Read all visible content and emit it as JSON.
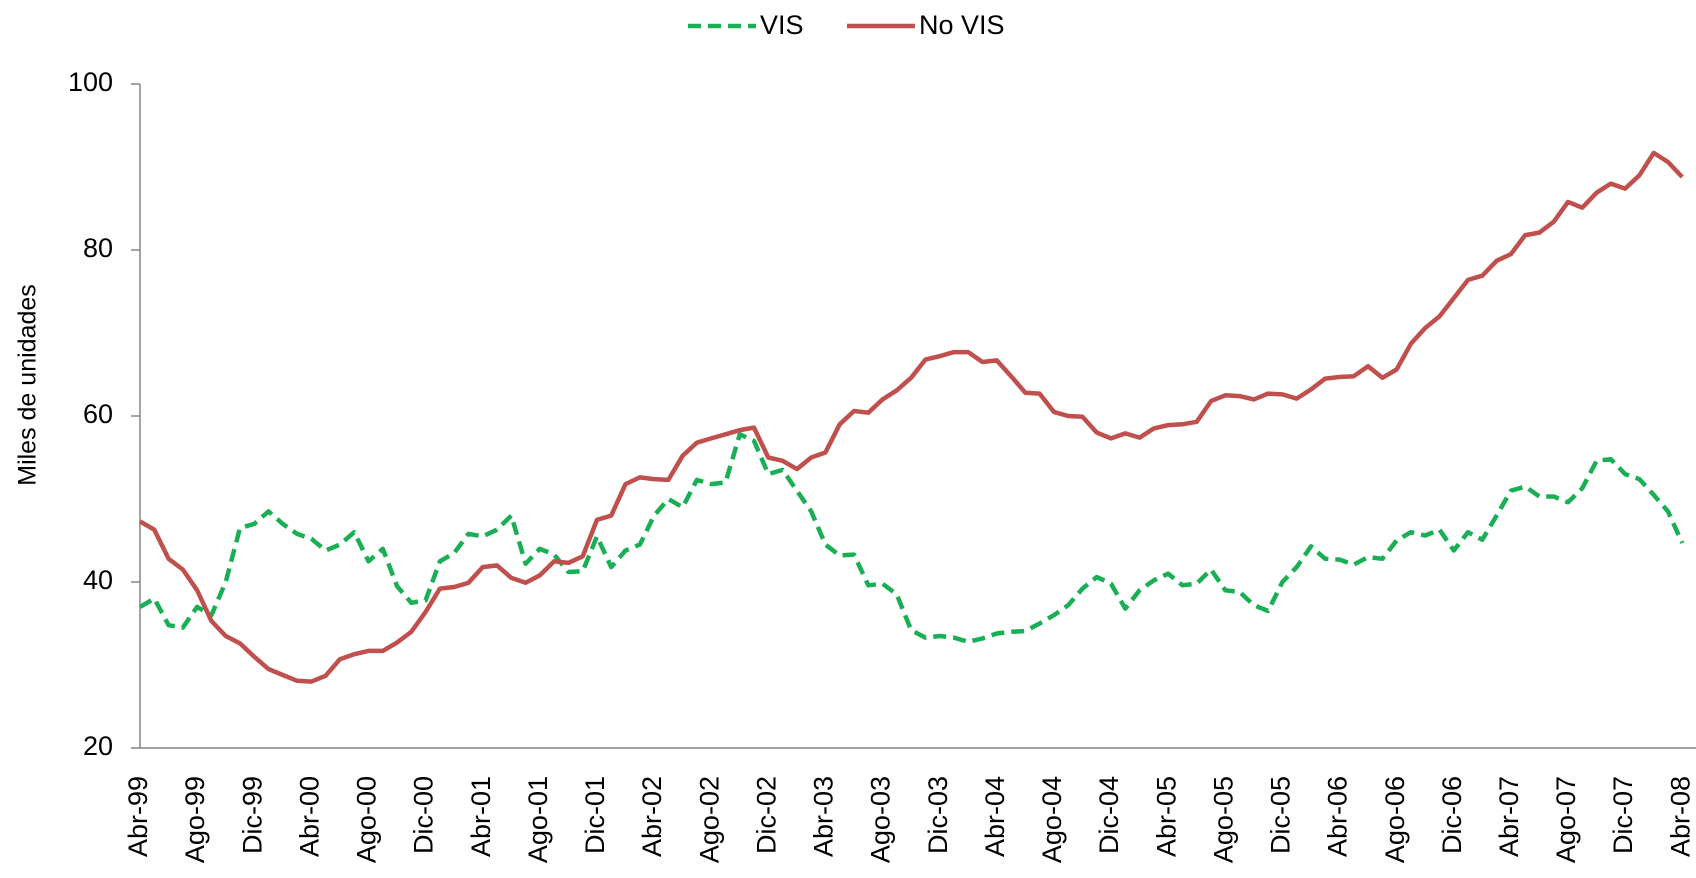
{
  "chart_data": {
    "type": "line",
    "y_label": "Miles de unidades",
    "categories": [
      "Abr-99",
      null,
      null,
      null,
      "Ago-99",
      null,
      null,
      null,
      "Dic-99",
      null,
      null,
      null,
      "Abr-00",
      null,
      null,
      null,
      "Ago-00",
      null,
      null,
      null,
      "Dic-00",
      null,
      null,
      null,
      "Abr-01",
      null,
      null,
      null,
      "Ago-01",
      null,
      null,
      null,
      "Dic-01",
      null,
      null,
      null,
      "Abr-02",
      null,
      null,
      null,
      "Ago-02",
      null,
      null,
      null,
      "Dic-02",
      null,
      null,
      null,
      "Abr-03",
      null,
      null,
      null,
      "Ago-03",
      null,
      null,
      null,
      "Dic-03",
      null,
      null,
      null,
      "Abr-04",
      null,
      null,
      null,
      "Ago-04",
      null,
      null,
      null,
      "Dic-04",
      null,
      null,
      null,
      "Abr-05",
      null,
      null,
      null,
      "Ago-05",
      null,
      null,
      null,
      "Dic-05",
      null,
      null,
      null,
      "Abr-06",
      null,
      null,
      null,
      "Ago-06",
      null,
      null,
      null,
      "Dic-06",
      null,
      null,
      null,
      "Abr-07",
      null,
      null,
      null,
      "Ago-07",
      null,
      null,
      null,
      "Dic-07",
      null,
      null,
      null,
      "Abr-08"
    ],
    "series": [
      {
        "name": "VIS",
        "color": "#1aaf54",
        "dashed": true,
        "values": [
          37,
          38,
          34.8,
          34.5,
          37,
          36,
          40,
          46.5,
          47,
          48.5,
          47,
          45.8,
          45.2,
          43.8,
          44.5,
          46,
          42.5,
          44,
          39.5,
          37.5,
          37.8,
          42.5,
          43.5,
          45.8,
          45.5,
          46.3,
          48,
          42.2,
          44,
          43.3,
          41.2,
          41.3,
          45.5,
          41.8,
          43.8,
          44.5,
          48,
          50,
          49,
          52.3,
          51.8,
          52,
          57.8,
          57,
          53,
          53.5,
          51,
          48.5,
          44.5,
          43.2,
          43.3,
          39.6,
          39.8,
          38.5,
          34.2,
          33.3,
          33.5,
          33.3,
          32.8,
          33.2,
          33.8,
          34,
          34.1,
          35,
          36,
          37.2,
          39.2,
          40.6,
          39.8,
          36.8,
          39,
          40.2,
          41,
          39.6,
          39.8,
          41.5,
          39,
          38.8,
          37.2,
          36.5,
          40,
          41.8,
          44.3,
          42.8,
          42.7,
          42.1,
          43,
          42.8,
          45,
          46,
          45.6,
          46.3,
          43.8,
          46,
          45.1,
          48,
          51,
          51.5,
          50.3,
          50.3,
          49.6,
          51.3,
          54.6,
          54.8,
          53,
          52.4,
          50.5,
          48.5,
          44.7
        ]
      },
      {
        "name": "No VIS",
        "color": "#c0504d",
        "dashed": false,
        "values": [
          47.3,
          46.3,
          42.8,
          41.5,
          39,
          35.3,
          33.5,
          32.6,
          31,
          29.5,
          28.8,
          28.1,
          28,
          28.7,
          30.7,
          31.3,
          31.7,
          31.7,
          32.7,
          34,
          36.4,
          39.2,
          39.4,
          39.9,
          41.8,
          42,
          40.5,
          39.9,
          40.8,
          42.5,
          42.3,
          43.1,
          47.5,
          48,
          51.8,
          52.6,
          52.4,
          52.3,
          55.2,
          56.8,
          57.3,
          57.8,
          58.3,
          58.6,
          55,
          54.6,
          53.6,
          55,
          55.6,
          59,
          60.6,
          60.4,
          62,
          63.1,
          64.6,
          66.8,
          67.2,
          67.7,
          67.7,
          66.5,
          66.7,
          64.8,
          62.8,
          62.7,
          60.5,
          60,
          59.9,
          58,
          57.3,
          57.9,
          57.4,
          58.5,
          58.9,
          59,
          59.3,
          61.8,
          62.5,
          62.4,
          62,
          62.7,
          62.6,
          62.1,
          63.2,
          64.5,
          64.7,
          64.8,
          66,
          64.6,
          65.6,
          68.7,
          70.6,
          72,
          74.2,
          76.4,
          76.9,
          78.7,
          79.5,
          81.8,
          82.1,
          83.4,
          85.8,
          85.1,
          86.9,
          88,
          87.4,
          89,
          91.7,
          90.6,
          88.8
        ]
      }
    ],
    "ylim": [
      20,
      100
    ],
    "yticks": [
      20,
      40,
      60,
      80,
      100
    ],
    "grid": false,
    "legend": "top"
  }
}
